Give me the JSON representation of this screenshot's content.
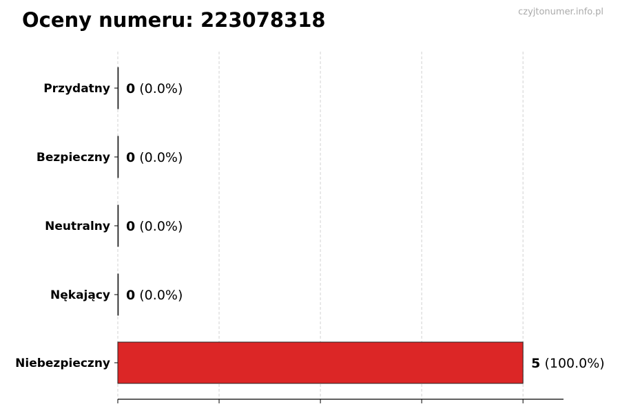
{
  "chart_data": {
    "type": "bar",
    "orientation": "horizontal",
    "title": "Oceny numeru: 223078318",
    "watermark": "czyjtonumer.info.pl",
    "categories": [
      "Przydatny",
      "Bezpieczny",
      "Neutralny",
      "Nękający",
      "Niebezpieczny"
    ],
    "values": [
      0,
      0,
      0,
      0,
      5
    ],
    "percent_labels": [
      "(0.0%)",
      "(0.0%)",
      "(0.0%)",
      "(0.0%)",
      "(100.0%)"
    ],
    "bar_colors": [
      "#2e7d32",
      "#4caf50",
      "#9e9e9e",
      "#f57c00",
      "#dc2626"
    ],
    "xlim": [
      0,
      5.5
    ],
    "xticks": [
      0,
      1.25,
      2.5,
      3.75,
      5
    ],
    "xtick_labels_shown": false,
    "grid": "x dashed",
    "xlabel": "",
    "ylabel": ""
  }
}
